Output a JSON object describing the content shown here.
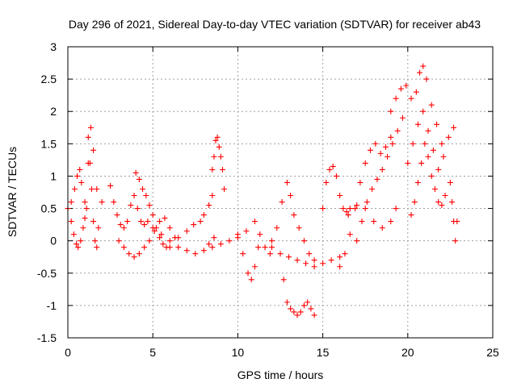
{
  "chart_data": {
    "type": "scatter",
    "title": "Day 296 of 2021, Sidereal Day-to-day VTEC variation (SDTVAR) for receiver ab43",
    "xlabel": "GPS time / hours",
    "ylabel": "SDTVAR / TECUs",
    "xlim": [
      0,
      25
    ],
    "ylim": [
      -1.5,
      3
    ],
    "xticks": [
      0,
      5,
      10,
      15,
      20,
      25
    ],
    "xtick_labels": [
      "0",
      "5",
      "10",
      "15",
      "20",
      "25"
    ],
    "yticks": [
      -1.5,
      -1,
      -0.5,
      0,
      0.5,
      1,
      1.5,
      2,
      2.5,
      3
    ],
    "ytick_labels": [
      "-1.5",
      "-1",
      "-0.5",
      "0",
      "0.5",
      "1",
      "1.5",
      "2",
      "2.5",
      "3"
    ],
    "grid": true,
    "marker": "+",
    "color": "#ff0000",
    "series": [
      {
        "name": "track-1",
        "x": [
          0.0,
          0.2,
          0.4,
          0.55,
          0.7,
          0.8,
          1.0,
          1.1,
          1.2,
          1.35,
          1.5,
          1.7
        ],
        "y": [
          0.5,
          0.6,
          0.8,
          1.0,
          1.1,
          0.9,
          0.6,
          0.5,
          1.2,
          1.75,
          1.4,
          0.8
        ]
      },
      {
        "name": "track-2",
        "x": [
          0.2,
          0.35,
          0.5,
          0.6,
          0.75,
          0.9,
          1.0
        ],
        "y": [
          0.3,
          0.1,
          -0.05,
          -0.1,
          0.0,
          0.2,
          0.35
        ]
      },
      {
        "name": "track-3",
        "x": [
          1.2,
          1.3,
          1.4,
          1.5,
          1.6,
          1.7,
          1.8,
          2.0
        ],
        "y": [
          1.6,
          1.2,
          0.8,
          0.3,
          0.0,
          -0.1,
          0.2,
          0.6
        ]
      },
      {
        "name": "track-4",
        "x": [
          2.5,
          2.7,
          2.9,
          3.1,
          3.3,
          3.5,
          3.7,
          3.9,
          4.1,
          4.3,
          4.5,
          4.7
        ],
        "y": [
          0.85,
          0.6,
          0.4,
          0.25,
          0.2,
          0.3,
          0.55,
          0.7,
          0.5,
          0.3,
          0.25,
          0.3
        ]
      },
      {
        "name": "track-5",
        "x": [
          3.0,
          3.3,
          3.6,
          3.9,
          4.2,
          4.5,
          4.8,
          5.1,
          5.4,
          5.7,
          6.0,
          6.3
        ],
        "y": [
          0.0,
          -0.1,
          -0.2,
          -0.25,
          -0.2,
          -0.1,
          0.0,
          0.15,
          0.3,
          0.35,
          0.2,
          0.05
        ]
      },
      {
        "name": "track-6",
        "x": [
          4.0,
          4.2,
          4.4,
          4.6,
          4.8,
          5.0,
          5.2,
          5.4,
          5.6,
          5.8
        ],
        "y": [
          1.05,
          0.95,
          0.8,
          0.7,
          0.55,
          0.4,
          0.2,
          0.05,
          -0.05,
          -0.1
        ]
      },
      {
        "name": "track-7",
        "x": [
          5.0,
          5.5,
          6.0,
          6.5,
          7.0,
          7.5,
          8.0,
          8.3,
          8.6
        ],
        "y": [
          0.2,
          0.1,
          0.0,
          -0.1,
          -0.15,
          -0.2,
          -0.15,
          -0.05,
          0.05
        ]
      },
      {
        "name": "track-8",
        "x": [
          6.0,
          6.5,
          7.0,
          7.4,
          7.8,
          8.0,
          8.3,
          8.5
        ],
        "y": [
          -0.1,
          0.05,
          0.15,
          0.25,
          0.3,
          0.4,
          0.55,
          0.7
        ]
      },
      {
        "name": "track-9",
        "x": [
          8.5,
          8.6,
          8.7,
          8.8,
          8.9,
          9.0,
          9.1,
          9.2
        ],
        "y": [
          1.1,
          1.3,
          1.55,
          1.6,
          1.45,
          1.3,
          1.1,
          0.8
        ]
      },
      {
        "name": "track-10",
        "x": [
          8.5,
          9.0,
          9.5,
          10.0,
          10.3,
          10.6,
          10.8,
          11.0,
          11.2
        ],
        "y": [
          -0.1,
          -0.05,
          0.0,
          0.05,
          -0.2,
          -0.5,
          -0.6,
          -0.4,
          -0.1
        ]
      },
      {
        "name": "track-11",
        "x": [
          10.0,
          10.5,
          11.0,
          11.3,
          11.6,
          11.9
        ],
        "y": [
          0.1,
          0.15,
          0.3,
          0.1,
          -0.1,
          -0.2
        ]
      },
      {
        "name": "track-12",
        "x": [
          12.0,
          12.3,
          12.6,
          12.9,
          13.1,
          13.3,
          13.6,
          13.9,
          14.2,
          14.5
        ],
        "y": [
          0.0,
          0.2,
          0.6,
          0.9,
          0.7,
          0.4,
          0.2,
          0.0,
          -0.2,
          -0.3
        ]
      },
      {
        "name": "track-13",
        "x": [
          12.7,
          12.9,
          13.1,
          13.3,
          13.5,
          13.7,
          13.9,
          14.1,
          14.3,
          14.5
        ],
        "y": [
          -0.6,
          -0.95,
          -1.05,
          -1.1,
          -1.15,
          -1.1,
          -1.0,
          -0.95,
          -1.05,
          -1.15
        ]
      },
      {
        "name": "track-14",
        "x": [
          12.0,
          12.5,
          13.0,
          13.5,
          14.0,
          14.5,
          15.0,
          15.5,
          16.0
        ],
        "y": [
          -0.1,
          -0.2,
          -0.25,
          -0.3,
          -0.35,
          -0.4,
          -0.35,
          -0.3,
          -0.25
        ]
      },
      {
        "name": "track-15",
        "x": [
          15.0,
          15.2,
          15.4,
          15.6,
          15.8,
          16.0,
          16.2,
          16.4,
          16.6
        ],
        "y": [
          0.5,
          0.9,
          1.1,
          1.15,
          1.0,
          0.7,
          0.5,
          0.45,
          0.5
        ]
      },
      {
        "name": "track-16",
        "x": [
          16.0,
          16.3,
          16.6,
          16.9,
          17.2,
          17.5,
          17.8,
          18.1,
          18.4,
          18.7,
          19.0
        ],
        "y": [
          -0.4,
          -0.2,
          0.1,
          0.5,
          0.9,
          1.2,
          1.4,
          1.5,
          1.35,
          1.45,
          1.6
        ]
      },
      {
        "name": "track-17",
        "x": [
          17.0,
          17.3,
          17.6,
          17.9,
          18.2,
          18.5,
          18.8,
          19.1,
          19.4,
          19.7
        ],
        "y": [
          0.0,
          0.3,
          0.6,
          0.8,
          0.95,
          1.1,
          1.3,
          1.5,
          1.7,
          1.9
        ]
      },
      {
        "name": "track-18",
        "x": [
          16.5,
          17.0,
          17.5,
          18.0,
          18.5,
          19.0,
          19.3
        ],
        "y": [
          0.4,
          0.55,
          0.5,
          0.3,
          0.2,
          0.3,
          0.5
        ]
      },
      {
        "name": "track-19",
        "x": [
          19.0,
          19.3,
          19.6,
          19.9,
          20.2,
          20.5,
          20.7,
          20.9,
          21.1,
          21.4,
          21.7,
          22.0
        ],
        "y": [
          2.0,
          2.2,
          2.35,
          2.4,
          2.2,
          2.3,
          2.6,
          2.7,
          2.5,
          2.1,
          1.8,
          1.5
        ]
      },
      {
        "name": "track-20",
        "x": [
          20.0,
          20.3,
          20.6,
          20.9,
          21.2,
          21.5,
          21.8,
          22.1,
          22.4,
          22.7
        ],
        "y": [
          1.2,
          1.5,
          1.8,
          2.0,
          1.7,
          1.4,
          1.1,
          1.3,
          1.6,
          1.75
        ]
      },
      {
        "name": "track-21",
        "x": [
          20.2,
          20.4,
          20.6,
          20.8,
          21.0,
          21.2,
          21.4,
          21.6,
          21.8,
          22.0,
          22.2
        ],
        "y": [
          0.4,
          0.6,
          0.9,
          1.2,
          1.5,
          1.3,
          1.0,
          0.8,
          0.6,
          0.55,
          0.7
        ]
      },
      {
        "name": "track-22",
        "x": [
          22.5,
          22.6,
          22.7,
          22.8,
          22.9
        ],
        "y": [
          0.9,
          0.6,
          0.3,
          0.0,
          0.3
        ]
      }
    ]
  }
}
